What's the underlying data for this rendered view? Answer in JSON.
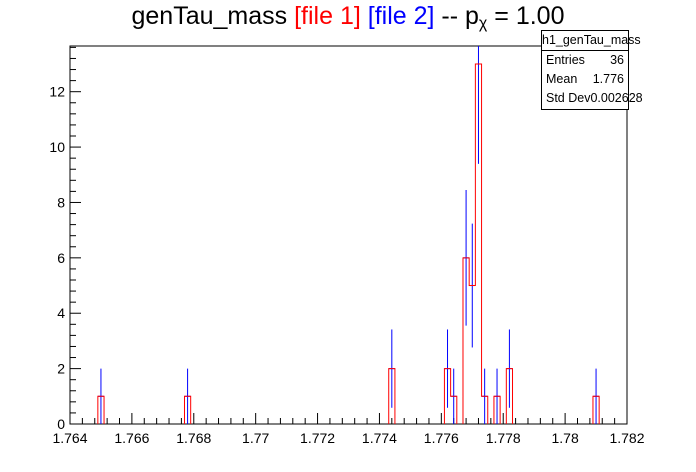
{
  "title": {
    "main": "genTau_mass ",
    "file1": "[file 1]",
    "file2": "[file 2]",
    "suffix": " -- p",
    "sub": "χ",
    "value": " = 1.00"
  },
  "stats": {
    "name": "h1_genTau_mass",
    "rows": [
      {
        "label": "Entries",
        "value": "36"
      },
      {
        "label": "Mean",
        "value": "1.776"
      },
      {
        "label": "Std Dev",
        "value": "0.002628"
      }
    ]
  },
  "chart_data": {
    "type": "histogram",
    "title": "genTau_mass [file 1] [file 2] -- pχ = 1.00",
    "xlim": [
      1.764,
      1.782
    ],
    "ylim": [
      0,
      13.65
    ],
    "bin_width": 0.0002,
    "x_ticks": [
      "1.764",
      "1.766",
      "1.768",
      "1.77",
      "1.772",
      "1.774",
      "1.776",
      "1.778",
      "1.78",
      "1.782"
    ],
    "y_ticks": [
      "0",
      "2",
      "4",
      "6",
      "8",
      "10",
      "12"
    ],
    "series": [
      {
        "name": "file 1",
        "color": "#ff0000",
        "bins": [
          {
            "x": 1.765,
            "y": 1
          },
          {
            "x": 1.7678,
            "y": 1
          },
          {
            "x": 1.7744,
            "y": 2
          },
          {
            "x": 1.7762,
            "y": 2
          },
          {
            "x": 1.7764,
            "y": 1
          },
          {
            "x": 1.7768,
            "y": 6
          },
          {
            "x": 1.777,
            "y": 5
          },
          {
            "x": 1.7772,
            "y": 13
          },
          {
            "x": 1.7774,
            "y": 1
          },
          {
            "x": 1.7778,
            "y": 1
          },
          {
            "x": 1.7782,
            "y": 2
          },
          {
            "x": 1.781,
            "y": 1
          }
        ]
      },
      {
        "name": "file 2",
        "color": "#0000ff",
        "bins": [
          {
            "x": 1.765,
            "y": 1
          },
          {
            "x": 1.7678,
            "y": 1
          },
          {
            "x": 1.7744,
            "y": 2
          },
          {
            "x": 1.7762,
            "y": 2
          },
          {
            "x": 1.7764,
            "y": 1
          },
          {
            "x": 1.7768,
            "y": 6
          },
          {
            "x": 1.777,
            "y": 5
          },
          {
            "x": 1.7772,
            "y": 13
          },
          {
            "x": 1.7774,
            "y": 1
          },
          {
            "x": 1.7778,
            "y": 1
          },
          {
            "x": 1.7782,
            "y": 2
          },
          {
            "x": 1.781,
            "y": 1
          }
        ]
      }
    ]
  }
}
